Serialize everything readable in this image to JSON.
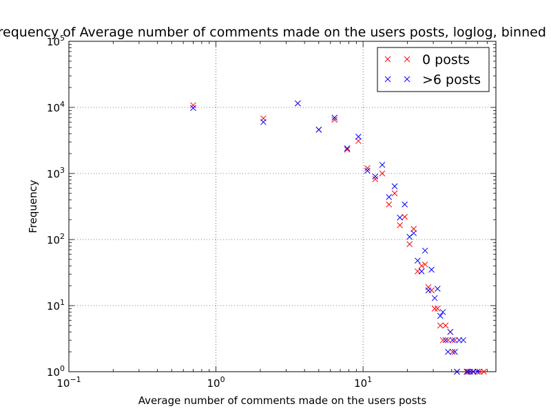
{
  "chart_data": {
    "type": "scatter",
    "title": "Frequency of Average number of comments made on the users posts, loglog, binned",
    "xlabel": "Average number of comments made on the users posts",
    "ylabel": "Frequency",
    "xscale": "log",
    "yscale": "log",
    "xlim": [
      0.1,
      80
    ],
    "ylim": [
      1,
      100000
    ],
    "grid": true,
    "legend_position": "top-right",
    "marker": "x",
    "x_ticks": [
      {
        "base": "10",
        "exp": "−1"
      },
      {
        "base": "10",
        "exp": "0"
      },
      {
        "base": "10",
        "exp": "1"
      }
    ],
    "y_ticks": [
      {
        "base": "10",
        "exp": "0"
      },
      {
        "base": "10",
        "exp": "1"
      },
      {
        "base": "10",
        "exp": "2"
      },
      {
        "base": "10",
        "exp": "3"
      },
      {
        "base": "10",
        "exp": "4"
      },
      {
        "base": "10",
        "exp": "5"
      }
    ],
    "series": [
      {
        "name": "0 posts",
        "color": "#ff0000",
        "x": [
          0.7,
          2.1,
          3.6,
          5.0,
          6.4,
          7.8,
          9.3,
          10.7,
          12.1,
          13.5,
          15.0,
          16.4,
          17.8,
          19.2,
          20.7,
          22.1,
          23.5,
          25.0,
          26.4,
          27.8,
          29.2,
          30.7,
          32.1,
          33.5,
          34.9,
          36.4,
          37.8,
          39.2,
          40.6,
          42.1,
          43.5,
          50.6,
          52.0,
          56.3,
          62.0,
          66.3
        ],
        "y": [
          10800,
          6800,
          11500,
          4600,
          6500,
          2300,
          3100,
          1200,
          820,
          1000,
          340,
          500,
          165,
          220,
          85,
          145,
          33,
          40,
          42,
          19,
          17,
          9,
          9,
          5,
          3,
          5,
          3,
          4,
          2,
          3,
          1,
          1,
          1,
          1,
          1,
          1
        ]
      },
      {
        "name": ">6 posts",
        "color": "#0000ff",
        "x": [
          0.7,
          2.1,
          3.6,
          5.0,
          6.4,
          7.8,
          9.3,
          10.7,
          12.1,
          13.5,
          15.0,
          16.4,
          17.8,
          19.2,
          20.7,
          22.1,
          23.5,
          25.0,
          26.4,
          27.8,
          29.2,
          30.7,
          32.1,
          33.5,
          34.9,
          36.4,
          37.8,
          39.2,
          40.6,
          42.1,
          43.5,
          45.0,
          48.0,
          51.0,
          53.5,
          56.0,
          60.0
        ],
        "y": [
          9800,
          6000,
          11500,
          4600,
          7000,
          2400,
          3600,
          1100,
          900,
          1350,
          440,
          640,
          215,
          340,
          110,
          125,
          48,
          33,
          68,
          17,
          35,
          13,
          18,
          7,
          8,
          3,
          2,
          4,
          3,
          2,
          1,
          3,
          3,
          1,
          1,
          1,
          1
        ]
      }
    ]
  }
}
